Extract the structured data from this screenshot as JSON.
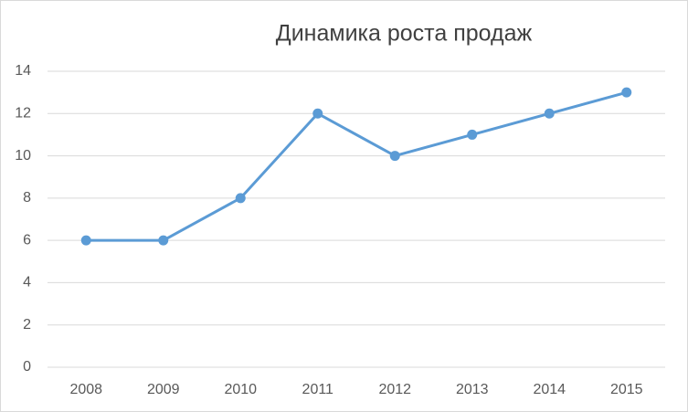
{
  "chart_data": {
    "type": "line",
    "title": "Динамика роста продаж",
    "categories": [
      "2008",
      "2009",
      "2010",
      "2011",
      "2012",
      "2013",
      "2014",
      "2015"
    ],
    "values": [
      6,
      6,
      8,
      12,
      10,
      11,
      12,
      13
    ],
    "color": "#5b9bd5",
    "ylim": [
      0,
      14
    ],
    "yticks": [
      0,
      2,
      4,
      6,
      8,
      10,
      12,
      14
    ],
    "grid": true
  }
}
